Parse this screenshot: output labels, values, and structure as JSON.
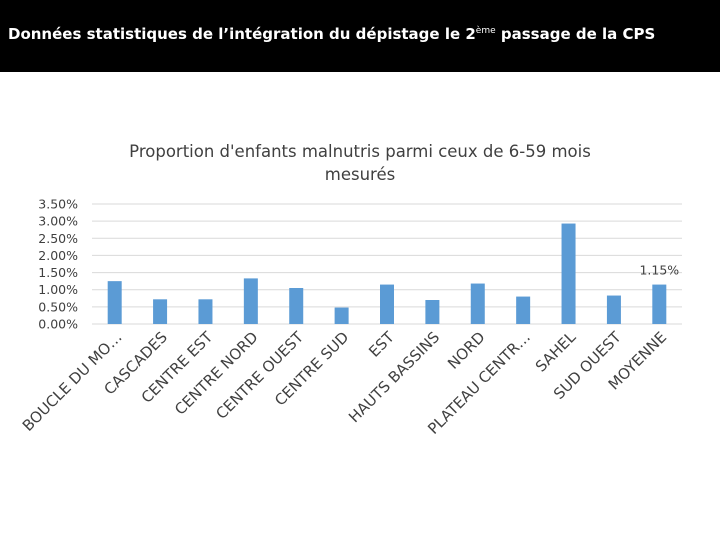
{
  "header": {
    "title_before": "Données statistiques de l’intégration du dépistage le 2",
    "title_sup": "ème",
    "title_after": " passage de la CPS",
    "background": "#000000",
    "text_color": "#ffffff"
  },
  "chart_data": {
    "type": "bar",
    "title": "Proportion d'enfants malnutris parmi ceux de 6-59 mois mesurés",
    "title_lines": [
      "Proportion d'enfants malnutris parmi ceux de 6-59 mois",
      "mesurés"
    ],
    "categories": [
      "BOUCLE DU MO…",
      "CASCADES",
      "CENTRE EST",
      "CENTRE NORD",
      "CENTRE OUEST",
      "CENTRE SUD",
      "EST",
      "HAUTS BASSINS",
      "NORD",
      "PLATEAU CENTR…",
      "SAHEL",
      "SUD OUEST",
      "MOYENNE"
    ],
    "values": [
      1.25,
      0.72,
      0.72,
      1.33,
      1.05,
      0.48,
      1.15,
      0.7,
      1.18,
      0.8,
      2.93,
      0.83,
      1.15
    ],
    "value_unit": "%",
    "data_labels": [
      {
        "category": "MOYENNE",
        "text": "1.15%"
      }
    ],
    "ylim": [
      0,
      3.5
    ],
    "yticks": [
      "0.00%",
      "0.50%",
      "1.00%",
      "1.50%",
      "2.00%",
      "2.50%",
      "3.00%",
      "3.50%"
    ],
    "xlabel": "",
    "ylabel": "",
    "grid": true,
    "legend": "none",
    "bar_color": "#5b9bd5",
    "grid_color": "#d9d9d9"
  }
}
